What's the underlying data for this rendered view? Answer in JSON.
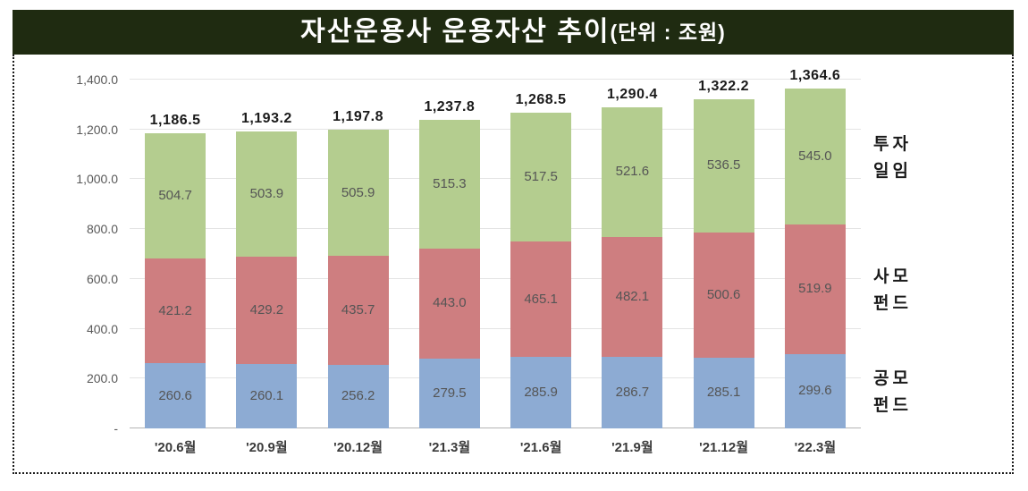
{
  "title": {
    "main": "자산운용사  운용자산  추이",
    "unit": "(단위 : 조원)"
  },
  "colors": {
    "title_bar_bg": "#1f2b11",
    "title_text": "#ffffff",
    "public_fund_blue": "#8dabd3",
    "private_fund_red": "#ce7e80",
    "discretionary_green": "#b4cd8f",
    "gridline": "#e4e4e4",
    "axis_text": "#595959",
    "segment_label_text": "#555555",
    "total_label_text": "#1a1a1a"
  },
  "chart_data": {
    "type": "bar",
    "stacked": true,
    "title": "자산운용사 운용자산 추이",
    "unit_note": "단위 : 조원",
    "grid": true,
    "legend_position": "right",
    "ylim": [
      0,
      1400
    ],
    "categories": [
      "'20.6월",
      "'20.9월",
      "'20.12월",
      "'21.3월",
      "'21.6월",
      "'21.9월",
      "'21.12월",
      "'22.3월"
    ],
    "series": [
      {
        "name": "공모펀드",
        "name_lines": [
          "공모",
          "펀드"
        ],
        "color": "#8dabd3",
        "values": [
          260.6,
          260.1,
          256.2,
          279.5,
          285.9,
          286.7,
          285.1,
          299.6
        ]
      },
      {
        "name": "사모펀드",
        "name_lines": [
          "사모",
          "펀드"
        ],
        "color": "#ce7e80",
        "values": [
          421.2,
          429.2,
          435.7,
          443.0,
          465.1,
          482.1,
          500.6,
          519.9
        ]
      },
      {
        "name": "투자일임",
        "name_lines": [
          "투자",
          "일임"
        ],
        "color": "#b4cd8f",
        "values": [
          504.7,
          503.9,
          505.9,
          515.3,
          517.5,
          521.6,
          536.5,
          545.0
        ]
      }
    ],
    "totals": [
      "1,186.5",
      "1,193.2",
      "1,197.8",
      "1,237.8",
      "1,268.5",
      "1,290.4",
      "1,322.2",
      "1,364.6"
    ],
    "yticks": [
      {
        "label": "-",
        "value": 0
      },
      {
        "label": "200.0",
        "value": 200
      },
      {
        "label": "400.0",
        "value": 400
      },
      {
        "label": "600.0",
        "value": 600
      },
      {
        "label": "800.0",
        "value": 800
      },
      {
        "label": "1,000.0",
        "value": 1000
      },
      {
        "label": "1,200.0",
        "value": 1200
      },
      {
        "label": "1,400.0",
        "value": 1400
      }
    ]
  }
}
